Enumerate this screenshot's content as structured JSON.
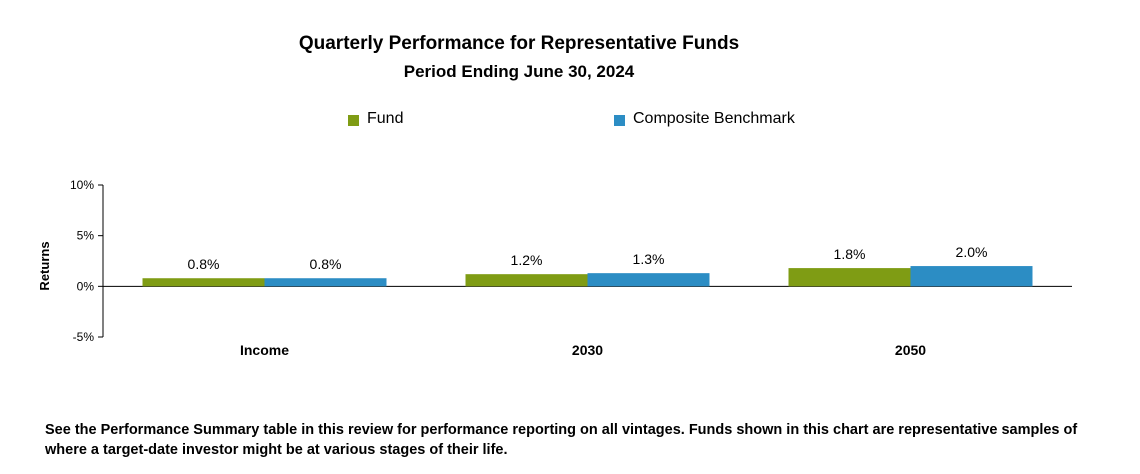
{
  "chart_data": {
    "type": "bar",
    "title": "Quarterly Performance for Representative Funds",
    "subtitle": "Period Ending June 30, 2024",
    "ylabel": "Returns",
    "ylim": [
      -5,
      10
    ],
    "yticks": [
      10,
      5,
      0,
      -5
    ],
    "ytick_labels": [
      "10%",
      "5%",
      "0%",
      "-5%"
    ],
    "categories": [
      "Income",
      "2030",
      "2050"
    ],
    "series": [
      {
        "name": "Fund",
        "color": "#7f9c14",
        "values": [
          0.8,
          1.2,
          1.8
        ],
        "labels": [
          "0.8%",
          "1.2%",
          "1.8%"
        ]
      },
      {
        "name": "Composite Benchmark",
        "color": "#2c8dc4",
        "values": [
          0.8,
          1.3,
          2.0
        ],
        "labels": [
          "0.8%",
          "1.3%",
          "2.0%"
        ]
      }
    ],
    "legend": "top-center",
    "grid": false
  },
  "footnote": "See the Performance Summary table in this review for performance reporting on all vintages. Funds shown in this chart are representative samples of where a target-date investor might be at various stages of their life."
}
